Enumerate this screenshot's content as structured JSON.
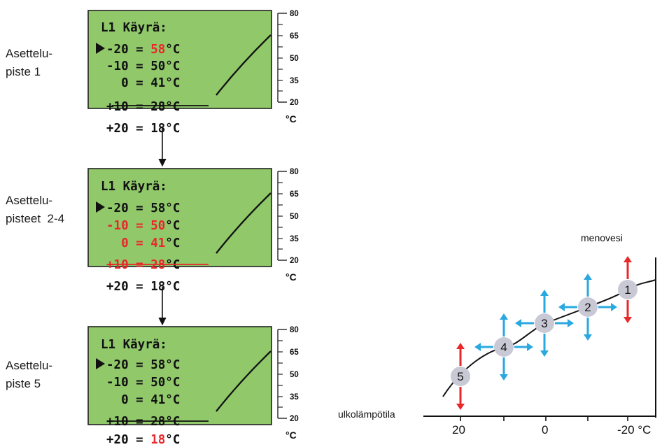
{
  "colors": {
    "lcd_bg": "#90c86a",
    "lcd_border": "#222222",
    "highlight": "#e8282b",
    "arrow_blue": "#2aa8e0",
    "arrow_red": "#e8282b",
    "point_fill": "#c9c9d6"
  },
  "panels": [
    {
      "label_lines": [
        "Asettelu-",
        "piste 1"
      ],
      "title": "L1 Käyrä:",
      "rows": [
        {
          "prefix": "-20 = ",
          "value": "58",
          "unit": "°C",
          "highlight": "value",
          "marker": true
        },
        {
          "prefix": "-10 = ",
          "value": "50",
          "unit": "°C",
          "highlight": "none",
          "marker": false
        },
        {
          "prefix": "  0 = ",
          "value": "41",
          "unit": "°C",
          "highlight": "none",
          "marker": false
        },
        {
          "prefix": "+10 = ",
          "value": "28",
          "unit": "°C",
          "highlight": "none",
          "marker": false
        },
        {
          "prefix": "+20 = ",
          "value": "18",
          "unit": "°C",
          "highlight": "none",
          "marker": false
        }
      ],
      "scale": [
        "80",
        "65",
        "50",
        "35",
        "20"
      ],
      "scale_unit": "°C"
    },
    {
      "label_lines": [
        "Asettelu-",
        "pisteet  2-4"
      ],
      "title": "L1 Käyrä:",
      "rows": [
        {
          "prefix": "-20 = ",
          "value": "58",
          "unit": "°C",
          "highlight": "none",
          "marker": true
        },
        {
          "prefix": "-10 = ",
          "value": "50",
          "unit": "°C",
          "highlight": "all",
          "marker": false
        },
        {
          "prefix": "  0 = ",
          "value": "41",
          "unit": "°C",
          "highlight": "all",
          "marker": false
        },
        {
          "prefix": "+10 = ",
          "value": "28",
          "unit": "°C",
          "highlight": "all",
          "marker": false
        },
        {
          "prefix": "+20 = ",
          "value": "18",
          "unit": "°C",
          "highlight": "none",
          "marker": false
        }
      ],
      "scale": [
        "80",
        "65",
        "50",
        "35",
        "20"
      ],
      "scale_unit": "°C"
    },
    {
      "label_lines": [
        "Asettelu-",
        "piste 5"
      ],
      "title": "L1 Käyrä:",
      "rows": [
        {
          "prefix": "-20 = ",
          "value": "58",
          "unit": "°C",
          "highlight": "none",
          "marker": true
        },
        {
          "prefix": "-10 = ",
          "value": "50",
          "unit": "°C",
          "highlight": "none",
          "marker": false
        },
        {
          "prefix": "  0 = ",
          "value": "41",
          "unit": "°C",
          "highlight": "none",
          "marker": false
        },
        {
          "prefix": "+10 = ",
          "value": "28",
          "unit": "°C",
          "highlight": "none",
          "marker": false
        },
        {
          "prefix": "+20 = ",
          "value": "18",
          "unit": "°C",
          "highlight": "value",
          "marker": false
        }
      ],
      "scale": [
        "80",
        "65",
        "50",
        "35",
        "20"
      ],
      "scale_unit": "°C"
    }
  ],
  "curve_graph": {
    "y_axis_label": "menovesi",
    "x_axis_label": "ulkolämpötila",
    "x_ticks": [
      "20",
      "0",
      "-20 °C"
    ],
    "points": [
      {
        "label": "1",
        "arrows": "vertical-red"
      },
      {
        "label": "2",
        "arrows": "cross-blue"
      },
      {
        "label": "3",
        "arrows": "cross-blue"
      },
      {
        "label": "4",
        "arrows": "cross-blue"
      },
      {
        "label": "5",
        "arrows": "vertical-red"
      }
    ]
  }
}
